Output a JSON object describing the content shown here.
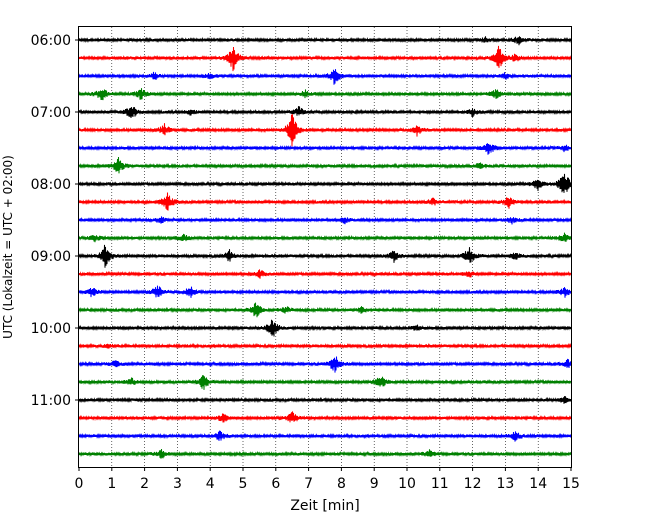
{
  "chart_data": {
    "type": "line",
    "title": "",
    "xlabel": "Zeit  [min]",
    "ylabel": "UTC (Lokalzeit = UTC + 02:00)",
    "xlim": [
      0,
      15
    ],
    "x_ticks": [
      "0",
      "1",
      "2",
      "3",
      "4",
      "5",
      "6",
      "7",
      "8",
      "9",
      "10",
      "11",
      "12",
      "13",
      "14",
      "15"
    ],
    "y_ticks": [
      "06:00",
      "07:00",
      "08:00",
      "09:00",
      "10:00",
      "11:00"
    ],
    "grid": "vertical dotted",
    "trace_colors": [
      "#000000",
      "#ff0000",
      "#0000ff",
      "#008000"
    ],
    "series": [
      {
        "start": "06:00",
        "color": "#000000",
        "events": [
          [
            12.4,
            0.4
          ],
          [
            13.4,
            0.8
          ]
        ]
      },
      {
        "start": "06:15",
        "color": "#ff0000",
        "events": [
          [
            4.7,
            2.2
          ],
          [
            12.8,
            2.0
          ],
          [
            13.3,
            0.6
          ]
        ]
      },
      {
        "start": "06:30",
        "color": "#0000ff",
        "events": [
          [
            2.3,
            0.6
          ],
          [
            4.0,
            0.5
          ],
          [
            7.8,
            1.6
          ],
          [
            13.0,
            0.5
          ]
        ]
      },
      {
        "start": "06:45",
        "color": "#008000",
        "events": [
          [
            0.7,
            1.2
          ],
          [
            1.9,
            1.0
          ],
          [
            6.9,
            0.6
          ],
          [
            12.7,
            0.8
          ]
        ]
      },
      {
        "start": "07:00",
        "color": "#000000",
        "events": [
          [
            1.6,
            1.4
          ],
          [
            3.4,
            0.5
          ],
          [
            6.7,
            0.8
          ],
          [
            12.0,
            0.7
          ]
        ]
      },
      {
        "start": "07:15",
        "color": "#ff0000",
        "events": [
          [
            2.6,
            1.0
          ],
          [
            6.5,
            3.0
          ],
          [
            10.3,
            0.9
          ]
        ]
      },
      {
        "start": "07:30",
        "color": "#0000ff",
        "events": [
          [
            12.5,
            1.2
          ],
          [
            14.8,
            0.5
          ]
        ]
      },
      {
        "start": "07:45",
        "color": "#008000",
        "events": [
          [
            1.2,
            1.3
          ],
          [
            12.2,
            0.6
          ]
        ]
      },
      {
        "start": "08:00",
        "color": "#000000",
        "events": [
          [
            14.0,
            1.2
          ],
          [
            14.8,
            2.5
          ]
        ]
      },
      {
        "start": "08:15",
        "color": "#ff0000",
        "events": [
          [
            2.7,
            1.6
          ],
          [
            10.8,
            0.6
          ],
          [
            13.1,
            1.0
          ]
        ]
      },
      {
        "start": "08:30",
        "color": "#0000ff",
        "events": [
          [
            2.5,
            0.6
          ],
          [
            8.1,
            0.5
          ],
          [
            13.2,
            0.6
          ]
        ]
      },
      {
        "start": "08:45",
        "color": "#008000",
        "events": [
          [
            0.5,
            0.6
          ],
          [
            3.2,
            0.6
          ],
          [
            14.8,
            0.8
          ]
        ]
      },
      {
        "start": "09:00",
        "color": "#000000",
        "events": [
          [
            0.8,
            2.0
          ],
          [
            4.6,
            1.0
          ],
          [
            9.6,
            1.0
          ],
          [
            11.9,
            1.6
          ],
          [
            13.3,
            0.6
          ]
        ]
      },
      {
        "start": "09:15",
        "color": "#ff0000",
        "events": [
          [
            5.5,
            0.7
          ],
          [
            11.9,
            0.5
          ]
        ]
      },
      {
        "start": "09:30",
        "color": "#0000ff",
        "events": [
          [
            0.4,
            0.8
          ],
          [
            2.4,
            1.2
          ],
          [
            3.4,
            1.0
          ],
          [
            14.8,
            0.8
          ]
        ]
      },
      {
        "start": "09:45",
        "color": "#008000",
        "events": [
          [
            5.4,
            1.4
          ],
          [
            6.3,
            0.6
          ],
          [
            8.6,
            0.5
          ]
        ]
      },
      {
        "start": "10:00",
        "color": "#000000",
        "events": [
          [
            5.9,
            1.8
          ],
          [
            10.3,
            0.5
          ]
        ]
      },
      {
        "start": "10:15",
        "color": "#ff0000",
        "events": [
          [
            0.9,
            0.3
          ]
        ]
      },
      {
        "start": "10:30",
        "color": "#0000ff",
        "events": [
          [
            1.1,
            0.8
          ],
          [
            7.8,
            1.6
          ],
          [
            14.9,
            0.7
          ]
        ]
      },
      {
        "start": "10:45",
        "color": "#008000",
        "events": [
          [
            1.6,
            0.6
          ],
          [
            3.8,
            1.5
          ],
          [
            9.2,
            1.2
          ]
        ]
      },
      {
        "start": "11:00",
        "color": "#000000",
        "events": [
          [
            14.8,
            0.6
          ]
        ]
      },
      {
        "start": "11:15",
        "color": "#ff0000",
        "events": [
          [
            4.4,
            0.7
          ],
          [
            6.5,
            1.0
          ]
        ]
      },
      {
        "start": "11:30",
        "color": "#0000ff",
        "events": [
          [
            4.3,
            0.8
          ],
          [
            13.3,
            0.8
          ]
        ]
      },
      {
        "start": "11:45",
        "color": "#008000",
        "events": [
          [
            2.5,
            0.8
          ],
          [
            10.7,
            0.6
          ]
        ]
      }
    ]
  }
}
